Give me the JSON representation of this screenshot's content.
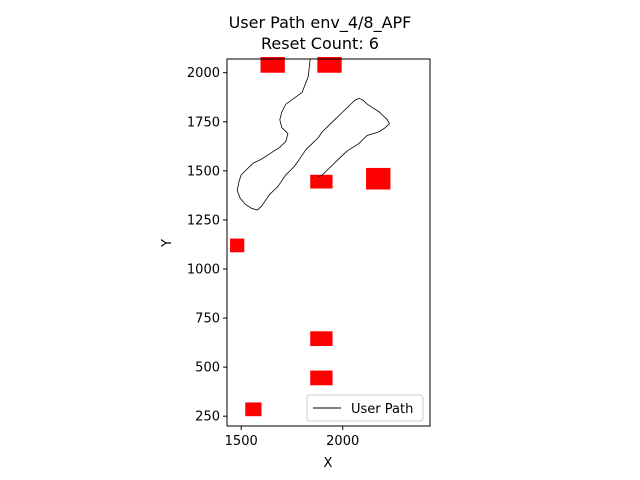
{
  "chart_data": {
    "type": "line",
    "title_line1": "User Path env_4/8_APF",
    "title_line2": "Reset Count: 6",
    "xlabel": "X",
    "ylabel": "Y",
    "xlim": [
      1430,
      2430
    ],
    "ylim": [
      200,
      2070
    ],
    "xticks": [
      1500,
      2000
    ],
    "xtick_labels": [
      "1500",
      "2000"
    ],
    "yticks": [
      250,
      500,
      750,
      1000,
      1250,
      1500,
      1750,
      2000
    ],
    "ytick_labels": [
      "250",
      "500",
      "750",
      "1000",
      "1250",
      "1500",
      "1750",
      "2000"
    ],
    "grid": false,
    "legend": {
      "position": "lower-right",
      "entries": [
        "User Path"
      ]
    },
    "colors": {
      "path": "#000000",
      "obstacle": "#ff0000"
    },
    "obstacles": [
      {
        "x": 1655,
        "y": 2040,
        "w": 120,
        "h": 80
      },
      {
        "x": 1935,
        "y": 2040,
        "w": 120,
        "h": 80
      },
      {
        "x": 1895,
        "y": 1445,
        "w": 110,
        "h": 70
      },
      {
        "x": 2175,
        "y": 1460,
        "w": 120,
        "h": 110
      },
      {
        "x": 1480,
        "y": 1120,
        "w": 70,
        "h": 70
      },
      {
        "x": 1895,
        "y": 645,
        "w": 110,
        "h": 75
      },
      {
        "x": 1895,
        "y": 445,
        "w": 110,
        "h": 75
      },
      {
        "x": 1560,
        "y": 285,
        "w": 80,
        "h": 70
      }
    ],
    "series": [
      {
        "name": "User Path",
        "x": [
          1840,
          1830,
          1800,
          1760,
          1720,
          1700,
          1690,
          1700,
          1730,
          1720,
          1690,
          1660,
          1630,
          1600,
          1580,
          1560,
          1540,
          1520,
          1500,
          1490,
          1480,
          1495,
          1520,
          1550,
          1580,
          1600,
          1620,
          1640,
          1660,
          1680,
          1700,
          1720,
          1740,
          1760,
          1780,
          1800,
          1820,
          1850,
          1880,
          1900,
          1920,
          1940,
          1960,
          1980,
          2000,
          2020,
          2040,
          2060,
          2080,
          2100,
          2120,
          2150,
          2180,
          2200,
          2220,
          2230,
          2210,
          2180,
          2150,
          2120,
          2100,
          2080,
          2050,
          2020,
          2000,
          1980,
          1960,
          1940,
          1920,
          1900,
          1880
        ],
        "y": [
          2070,
          1980,
          1900,
          1870,
          1840,
          1800,
          1760,
          1720,
          1690,
          1650,
          1620,
          1600,
          1580,
          1560,
          1550,
          1540,
          1520,
          1500,
          1480,
          1450,
          1400,
          1360,
          1330,
          1310,
          1300,
          1320,
          1350,
          1380,
          1400,
          1420,
          1450,
          1480,
          1500,
          1520,
          1550,
          1580,
          1610,
          1640,
          1670,
          1700,
          1720,
          1740,
          1760,
          1780,
          1800,
          1820,
          1840,
          1860,
          1870,
          1860,
          1840,
          1820,
          1800,
          1780,
          1760,
          1740,
          1720,
          1700,
          1690,
          1680,
          1660,
          1640,
          1620,
          1600,
          1580,
          1560,
          1540,
          1520,
          1500,
          1480,
          1470
        ]
      }
    ]
  }
}
